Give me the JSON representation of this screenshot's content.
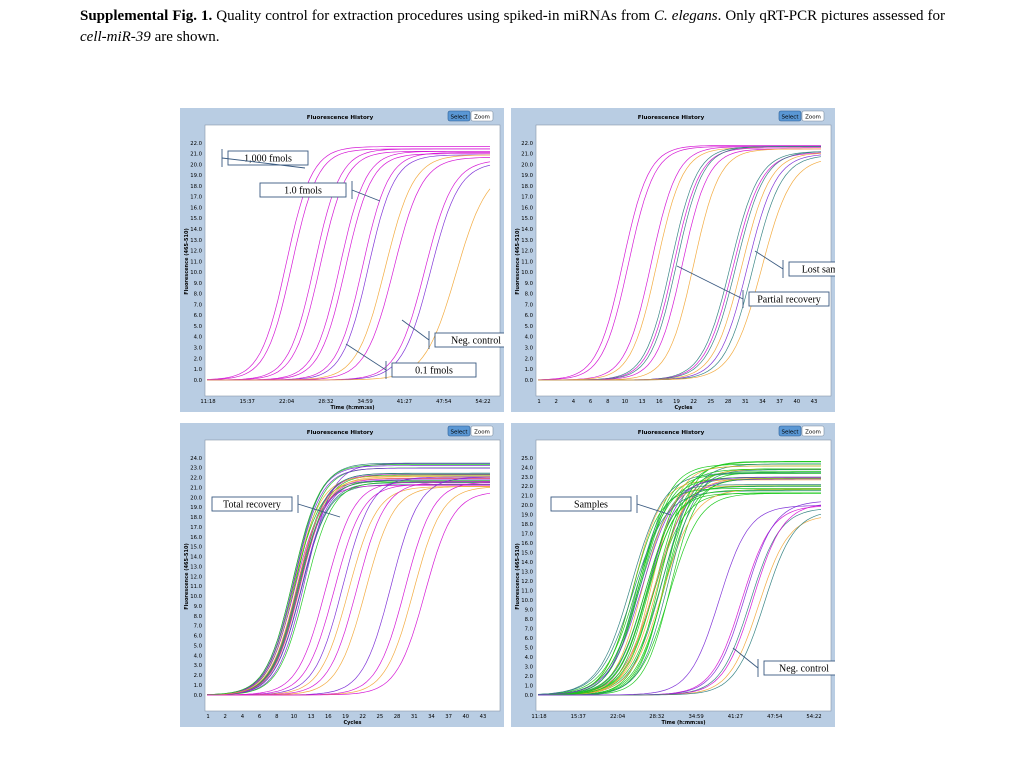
{
  "caption": {
    "label": "Supplemental Fig. 1.",
    "text_1": " Quality control for extraction procedures using spiked-in miRNAs from ",
    "species": "C. elegans",
    "text_2": ". Only qRT-PCR pictures assessed for ",
    "gene": "cell-miR-39",
    "text_3": " are shown."
  },
  "colors": {
    "panel_bg": "#b9cde3",
    "magenta": "#d40fd4",
    "purple": "#7a2ad6",
    "orange": "#f2a838",
    "green": "#18c818",
    "teal": "#2f7f7f",
    "button_blue": "#5a97d4",
    "annotation_line": "#3a5a80"
  },
  "panels": [
    {
      "id": "tl",
      "title": "Fluorescence History",
      "select_label": "Select",
      "zoom_label": "Zoom",
      "ylabel": "Fluorescence (465-510)",
      "xlabel": "Time (h:mm:ss)",
      "y_ticks": [
        "22.0",
        "21.0",
        "20.0",
        "19.0",
        "18.0",
        "17.0",
        "16.0",
        "15.0",
        "14.0",
        "13.0",
        "12.0",
        "11.0",
        "10.0",
        "9.0",
        "8.0",
        "7.0",
        "6.0",
        "5.0",
        "4.0",
        "3.0",
        "2.0",
        "1.0",
        "0.0"
      ],
      "x_ticks": [
        "11:18",
        "15:37",
        "22:04",
        "28:32",
        "34:59",
        "41:27",
        "47:54",
        "54:22"
      ],
      "annotations": [
        {
          "text": "1,000 fmols"
        },
        {
          "text": "1.0 fmols"
        },
        {
          "text": "Neg. control"
        },
        {
          "text": "0.1 fmols"
        }
      ]
    },
    {
      "id": "tr",
      "title": "Fluorescence History",
      "select_label": "Select",
      "zoom_label": "Zoom",
      "ylabel": "Fluorescence (465-510)",
      "xlabel": "Cycles",
      "y_ticks": [
        "22.0",
        "21.0",
        "20.0",
        "19.0",
        "18.0",
        "17.0",
        "16.0",
        "15.0",
        "14.0",
        "13.0",
        "12.0",
        "11.0",
        "10.0",
        "9.0",
        "8.0",
        "7.0",
        "6.0",
        "5.0",
        "4.0",
        "3.0",
        "2.0",
        "1.0",
        "0.0"
      ],
      "x_ticks": [
        "1",
        "2",
        "4",
        "6",
        "8",
        "10",
        "13",
        "16",
        "19",
        "22",
        "25",
        "28",
        "31",
        "34",
        "37",
        "40",
        "43"
      ],
      "annotations": [
        {
          "text": "Lost sample"
        },
        {
          "text": "Partial recovery"
        }
      ]
    },
    {
      "id": "bl",
      "title": "Fluorescence History",
      "select_label": "Select",
      "zoom_label": "Zoom",
      "ylabel": "Fluorescence (465-510)",
      "xlabel": "Cycles",
      "y_ticks": [
        "24.0",
        "23.0",
        "22.0",
        "21.0",
        "20.0",
        "19.0",
        "18.0",
        "17.0",
        "16.0",
        "15.0",
        "14.0",
        "13.0",
        "12.0",
        "11.0",
        "10.0",
        "9.0",
        "8.0",
        "7.0",
        "6.0",
        "5.0",
        "4.0",
        "3.0",
        "2.0",
        "1.0",
        "0.0"
      ],
      "x_ticks": [
        "1",
        "2",
        "4",
        "6",
        "8",
        "10",
        "13",
        "16",
        "19",
        "22",
        "25",
        "28",
        "31",
        "34",
        "37",
        "40",
        "43"
      ],
      "annotations": [
        {
          "text": "Total recovery"
        }
      ]
    },
    {
      "id": "br",
      "title": "Fluorescence History",
      "select_label": "Select",
      "zoom_label": "Zoom",
      "ylabel": "Fluorescence (465-510)",
      "xlabel": "Time (h:mm:ss)",
      "y_ticks": [
        "25.0",
        "24.0",
        "23.0",
        "22.0",
        "21.0",
        "20.0",
        "19.0",
        "18.0",
        "17.0",
        "16.0",
        "15.0",
        "14.0",
        "13.0",
        "12.0",
        "11.0",
        "10.0",
        "9.0",
        "8.0",
        "7.0",
        "6.0",
        "5.0",
        "4.0",
        "3.0",
        "2.0",
        "1.0",
        "0.0"
      ],
      "x_ticks": [
        "11:18",
        "15:37",
        "22:04",
        "28:32",
        "34:59",
        "41:27",
        "47:54",
        "54:22"
      ],
      "annotations": [
        {
          "text": "Samples"
        },
        {
          "text": "Neg. control"
        }
      ]
    }
  ]
}
